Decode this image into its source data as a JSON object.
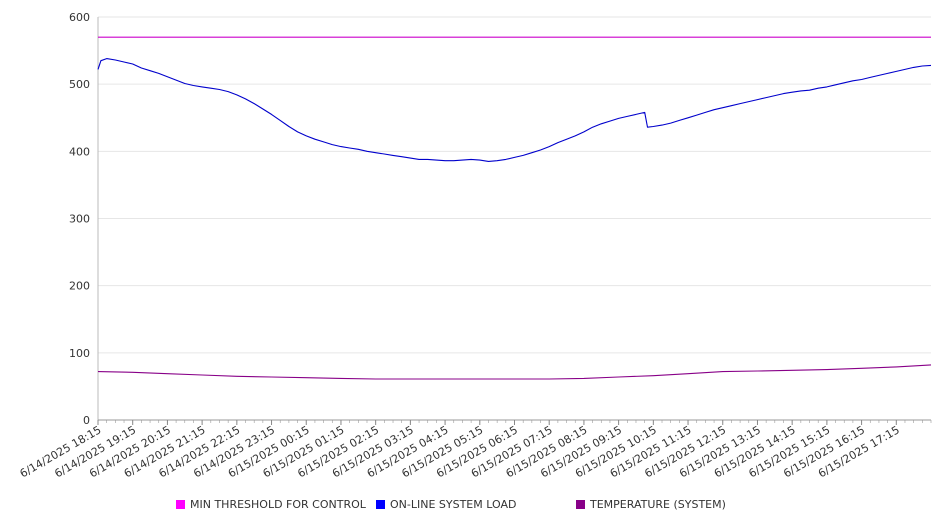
{
  "chart_data": {
    "type": "line",
    "title": "",
    "xlabel": "",
    "ylabel": "",
    "ylim": [
      0,
      600
    ],
    "yticks": [
      0,
      100,
      200,
      300,
      400,
      500,
      600
    ],
    "grid": true,
    "legend_position": "bottom",
    "x_tick_labels": [
      "6/14/2025 18:15",
      "6/14/2025 19:15",
      "6/14/2025 20:15",
      "6/14/2025 21:15",
      "6/14/2025 22:15",
      "6/14/2025 23:15",
      "6/15/2025 00:15",
      "6/15/2025 01:15",
      "6/15/2025 02:15",
      "6/15/2025 03:15",
      "6/15/2025 04:15",
      "6/15/2025 05:15",
      "6/15/2025 06:15",
      "6/15/2025 07:15",
      "6/15/2025 08:15",
      "6/15/2025 09:15",
      "6/15/2025 10:15",
      "6/15/2025 11:15",
      "6/15/2025 12:15",
      "6/15/2025 13:15",
      "6/15/2025 14:15",
      "6/15/2025 15:15",
      "6/15/2025 16:15",
      "6/15/2025 17:15"
    ],
    "x_range": [
      "6/14/2025 18:15",
      "6/15/2025 18:15"
    ],
    "series": [
      {
        "name": "MIN THRESHOLD FOR CONTROL",
        "color": "#cc00cc",
        "legend_color": "#ff00ff",
        "points": [
          [
            "6/14/2025 18:15",
            570
          ],
          [
            "6/15/2025 18:15",
            570
          ]
        ]
      },
      {
        "name": "ON-LINE SYSTEM LOAD",
        "color": "#0000cc",
        "legend_color": "#0000ff",
        "points": [
          [
            "6/14/2025 18:15",
            522
          ],
          [
            "6/14/2025 18:20",
            535
          ],
          [
            "6/14/2025 18:30",
            538
          ],
          [
            "6/14/2025 18:45",
            536
          ],
          [
            "6/14/2025 19:00",
            533
          ],
          [
            "6/14/2025 19:15",
            530
          ],
          [
            "6/14/2025 19:30",
            524
          ],
          [
            "6/14/2025 19:45",
            520
          ],
          [
            "6/14/2025 20:00",
            516
          ],
          [
            "6/14/2025 20:15",
            511
          ],
          [
            "6/14/2025 20:30",
            506
          ],
          [
            "6/14/2025 20:45",
            501
          ],
          [
            "6/14/2025 21:00",
            498
          ],
          [
            "6/14/2025 21:15",
            496
          ],
          [
            "6/14/2025 21:30",
            494
          ],
          [
            "6/14/2025 21:45",
            492
          ],
          [
            "6/14/2025 22:00",
            489
          ],
          [
            "6/14/2025 22:15",
            484
          ],
          [
            "6/14/2025 22:30",
            478
          ],
          [
            "6/14/2025 22:45",
            471
          ],
          [
            "6/14/2025 23:00",
            463
          ],
          [
            "6/14/2025 23:15",
            455
          ],
          [
            "6/14/2025 23:30",
            446
          ],
          [
            "6/14/2025 23:45",
            437
          ],
          [
            "6/15/2025 00:00",
            429
          ],
          [
            "6/15/2025 00:15",
            423
          ],
          [
            "6/15/2025 00:30",
            418
          ],
          [
            "6/15/2025 00:45",
            414
          ],
          [
            "6/15/2025 01:00",
            410
          ],
          [
            "6/15/2025 01:15",
            407
          ],
          [
            "6/15/2025 01:30",
            405
          ],
          [
            "6/15/2025 01:45",
            403
          ],
          [
            "6/15/2025 02:00",
            400
          ],
          [
            "6/15/2025 02:15",
            398
          ],
          [
            "6/15/2025 02:30",
            396
          ],
          [
            "6/15/2025 02:45",
            394
          ],
          [
            "6/15/2025 03:00",
            392
          ],
          [
            "6/15/2025 03:15",
            390
          ],
          [
            "6/15/2025 03:30",
            388
          ],
          [
            "6/15/2025 03:45",
            388
          ],
          [
            "6/15/2025 04:00",
            387
          ],
          [
            "6/15/2025 04:15",
            386
          ],
          [
            "6/15/2025 04:30",
            386
          ],
          [
            "6/15/2025 04:45",
            387
          ],
          [
            "6/15/2025 05:00",
            388
          ],
          [
            "6/15/2025 05:15",
            387
          ],
          [
            "6/15/2025 05:30",
            385
          ],
          [
            "6/15/2025 05:45",
            386
          ],
          [
            "6/15/2025 06:00",
            388
          ],
          [
            "6/15/2025 06:15",
            391
          ],
          [
            "6/15/2025 06:30",
            394
          ],
          [
            "6/15/2025 06:45",
            398
          ],
          [
            "6/15/2025 07:00",
            402
          ],
          [
            "6/15/2025 07:15",
            407
          ],
          [
            "6/15/2025 07:30",
            413
          ],
          [
            "6/15/2025 07:45",
            418
          ],
          [
            "6/15/2025 08:00",
            423
          ],
          [
            "6/15/2025 08:15",
            429
          ],
          [
            "6/15/2025 08:30",
            436
          ],
          [
            "6/15/2025 08:45",
            441
          ],
          [
            "6/15/2025 09:00",
            445
          ],
          [
            "6/15/2025 09:15",
            449
          ],
          [
            "6/15/2025 09:30",
            452
          ],
          [
            "6/15/2025 09:45",
            455
          ],
          [
            "6/15/2025 10:00",
            458
          ],
          [
            "6/15/2025 10:05",
            436
          ],
          [
            "6/15/2025 10:15",
            437
          ],
          [
            "6/15/2025 10:30",
            439
          ],
          [
            "6/15/2025 10:45",
            442
          ],
          [
            "6/15/2025 11:00",
            446
          ],
          [
            "6/15/2025 11:15",
            450
          ],
          [
            "6/15/2025 11:30",
            454
          ],
          [
            "6/15/2025 11:45",
            458
          ],
          [
            "6/15/2025 12:00",
            462
          ],
          [
            "6/15/2025 12:15",
            465
          ],
          [
            "6/15/2025 12:30",
            468
          ],
          [
            "6/15/2025 12:45",
            471
          ],
          [
            "6/15/2025 13:00",
            474
          ],
          [
            "6/15/2025 13:15",
            477
          ],
          [
            "6/15/2025 13:30",
            480
          ],
          [
            "6/15/2025 13:45",
            483
          ],
          [
            "6/15/2025 14:00",
            486
          ],
          [
            "6/15/2025 14:15",
            488
          ],
          [
            "6/15/2025 14:30",
            490
          ],
          [
            "6/15/2025 14:45",
            491
          ],
          [
            "6/15/2025 15:00",
            494
          ],
          [
            "6/15/2025 15:15",
            496
          ],
          [
            "6/15/2025 15:30",
            499
          ],
          [
            "6/15/2025 15:45",
            502
          ],
          [
            "6/15/2025 16:00",
            505
          ],
          [
            "6/15/2025 16:15",
            507
          ],
          [
            "6/15/2025 16:30",
            510
          ],
          [
            "6/15/2025 16:45",
            513
          ],
          [
            "6/15/2025 17:00",
            516
          ],
          [
            "6/15/2025 17:15",
            519
          ],
          [
            "6/15/2025 17:30",
            522
          ],
          [
            "6/15/2025 17:45",
            525
          ],
          [
            "6/15/2025 18:00",
            527
          ],
          [
            "6/15/2025 18:15",
            528
          ]
        ]
      },
      {
        "name": "TEMPERATURE (SYSTEM)",
        "color": "#880088",
        "legend_color": "#880088",
        "points": [
          [
            "6/14/2025 18:15",
            72
          ],
          [
            "6/14/2025 19:15",
            71
          ],
          [
            "6/14/2025 20:15",
            69
          ],
          [
            "6/14/2025 21:15",
            67
          ],
          [
            "6/14/2025 22:15",
            65
          ],
          [
            "6/14/2025 23:15",
            64
          ],
          [
            "6/15/2025 00:15",
            63
          ],
          [
            "6/15/2025 01:15",
            62
          ],
          [
            "6/15/2025 02:15",
            61
          ],
          [
            "6/15/2025 03:15",
            61
          ],
          [
            "6/15/2025 04:15",
            61
          ],
          [
            "6/15/2025 05:15",
            61
          ],
          [
            "6/15/2025 06:15",
            61
          ],
          [
            "6/15/2025 07:15",
            61
          ],
          [
            "6/15/2025 08:15",
            62
          ],
          [
            "6/15/2025 09:15",
            64
          ],
          [
            "6/15/2025 10:15",
            66
          ],
          [
            "6/15/2025 11:15",
            69
          ],
          [
            "6/15/2025 12:15",
            72
          ],
          [
            "6/15/2025 13:15",
            73
          ],
          [
            "6/15/2025 14:15",
            74
          ],
          [
            "6/15/2025 15:15",
            75
          ],
          [
            "6/15/2025 16:15",
            77
          ],
          [
            "6/15/2025 17:15",
            79
          ],
          [
            "6/15/2025 18:15",
            82
          ]
        ]
      }
    ]
  }
}
